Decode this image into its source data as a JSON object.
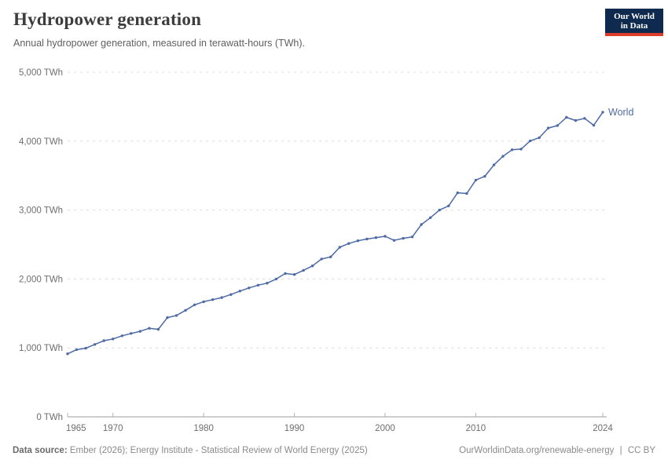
{
  "header": {
    "title": "Hydropower generation",
    "subtitle": "Annual hydropower generation, measured in terawatt-hours (TWh)."
  },
  "logo": {
    "line1": "Our World",
    "line2": "in Data",
    "bg_color": "#0e2a4e",
    "accent_color": "#dc3e2b"
  },
  "chart_data": {
    "type": "line",
    "title": "Hydropower generation",
    "subtitle": "Annual hydropower generation, measured in terawatt-hours (TWh).",
    "unit": "TWh",
    "xlabel": "",
    "ylabel": "",
    "xlim": [
      1965,
      2024
    ],
    "ylim": [
      0,
      5000
    ],
    "grid": "horizontal-dashed",
    "legend_position": "end-of-line",
    "x_ticks": [
      1965,
      1970,
      1980,
      1990,
      2000,
      2010,
      2024
    ],
    "y_ticks": [
      0,
      1000,
      2000,
      3000,
      4000,
      5000
    ],
    "y_tick_suffix": " TWh",
    "line_color": "#4C6AA5",
    "series": [
      {
        "name": "World",
        "color": "#4C6AA5",
        "x": [
          1965,
          1966,
          1967,
          1968,
          1969,
          1970,
          1971,
          1972,
          1973,
          1974,
          1975,
          1976,
          1977,
          1978,
          1979,
          1980,
          1981,
          1982,
          1983,
          1984,
          1985,
          1986,
          1987,
          1988,
          1989,
          1990,
          1991,
          1992,
          1993,
          1994,
          1995,
          1996,
          1997,
          1998,
          1999,
          2000,
          2001,
          2002,
          2003,
          2004,
          2005,
          2006,
          2007,
          2008,
          2009,
          2010,
          2011,
          2012,
          2013,
          2014,
          2015,
          2016,
          2017,
          2018,
          2019,
          2020,
          2021,
          2022,
          2023,
          2024
        ],
        "values": [
          915,
          975,
          995,
          1050,
          1105,
          1130,
          1175,
          1210,
          1240,
          1285,
          1270,
          1440,
          1470,
          1545,
          1625,
          1670,
          1700,
          1730,
          1775,
          1825,
          1870,
          1910,
          1940,
          2000,
          2080,
          2065,
          2125,
          2190,
          2290,
          2320,
          2460,
          2515,
          2555,
          2580,
          2600,
          2620,
          2560,
          2590,
          2610,
          2790,
          2890,
          3000,
          3060,
          3250,
          3240,
          3435,
          3490,
          3655,
          3780,
          3875,
          3885,
          4005,
          4050,
          4190,
          4225,
          4345,
          4300,
          4330,
          4230,
          4420
        ]
      }
    ]
  },
  "footer": {
    "source_label": "Data source:",
    "source_text": "Ember (2026); Energy Institute - Statistical Review of World Energy (2025)",
    "url": "OurWorldinData.org/renewable-energy",
    "separator": "|",
    "license": "CC BY"
  }
}
